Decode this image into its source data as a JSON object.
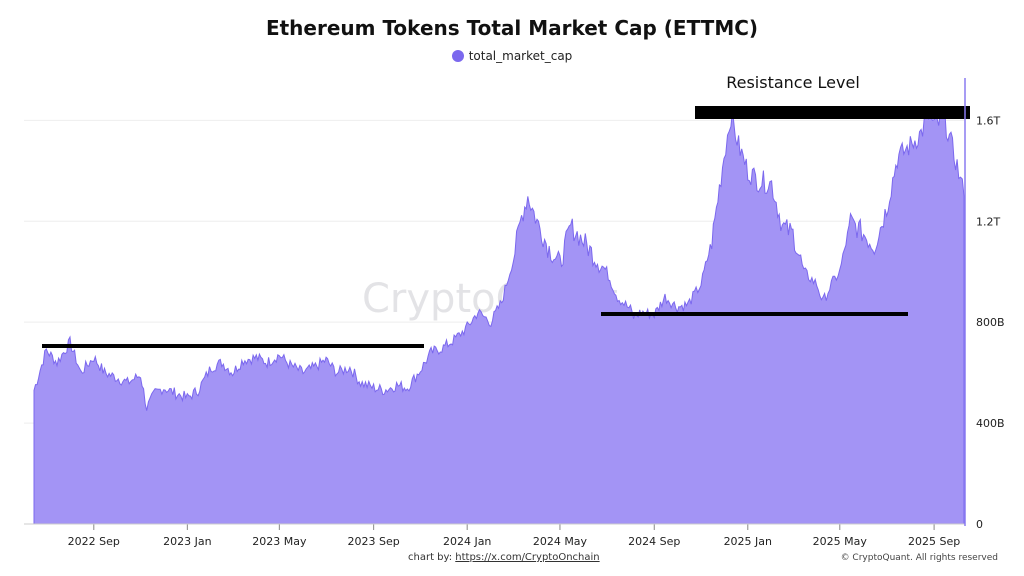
{
  "chart_data": {
    "type": "area",
    "title": "Ethereum Tokens Total Market Cap (ETTMC)",
    "legend": [
      "total_market_cap"
    ],
    "series": [
      {
        "name": "total_market_cap",
        "color": "#7b68ee",
        "x": [
          "2022-06-15",
          "2022-07-01",
          "2022-07-15",
          "2022-08-01",
          "2022-08-15",
          "2022-09-01",
          "2022-09-15",
          "2022-10-01",
          "2022-10-15",
          "2022-11-01",
          "2022-11-09",
          "2022-11-20",
          "2022-12-01",
          "2022-12-15",
          "2023-01-01",
          "2023-01-15",
          "2023-02-01",
          "2023-02-15",
          "2023-03-01",
          "2023-03-15",
          "2023-04-01",
          "2023-04-15",
          "2023-05-01",
          "2023-05-15",
          "2023-06-01",
          "2023-06-15",
          "2023-07-01",
          "2023-07-15",
          "2023-08-01",
          "2023-08-15",
          "2023-09-01",
          "2023-09-15",
          "2023-10-01",
          "2023-10-15",
          "2023-11-01",
          "2023-11-15",
          "2023-12-01",
          "2023-12-15",
          "2024-01-01",
          "2024-01-15",
          "2024-02-01",
          "2024-02-15",
          "2024-03-01",
          "2024-03-12",
          "2024-03-20",
          "2024-04-01",
          "2024-04-15",
          "2024-05-01",
          "2024-05-15",
          "2024-06-01",
          "2024-06-15",
          "2024-07-01",
          "2024-07-15",
          "2024-08-01",
          "2024-08-05",
          "2024-08-15",
          "2024-09-01",
          "2024-09-15",
          "2024-10-01",
          "2024-10-15",
          "2024-11-01",
          "2024-11-15",
          "2024-12-01",
          "2024-12-10",
          "2024-12-20",
          "2025-01-01",
          "2025-01-15",
          "2025-02-01",
          "2025-02-15",
          "2025-03-01",
          "2025-03-15",
          "2025-04-01",
          "2025-04-09",
          "2025-04-20",
          "2025-05-01",
          "2025-05-15",
          "2025-06-01",
          "2025-06-15",
          "2025-07-01",
          "2025-07-15",
          "2025-08-01",
          "2025-08-15",
          "2025-08-25",
          "2025-09-01",
          "2025-09-15",
          "2025-10-01",
          "2025-10-10"
        ],
        "values": [
          530,
          690,
          640,
          720,
          600,
          660,
          600,
          580,
          560,
          590,
          460,
          520,
          540,
          520,
          500,
          530,
          620,
          640,
          600,
          650,
          660,
          640,
          670,
          630,
          600,
          620,
          650,
          600,
          620,
          560,
          540,
          530,
          550,
          540,
          610,
          680,
          700,
          730,
          780,
          840,
          800,
          880,
          1050,
          1220,
          1300,
          1200,
          1100,
          1030,
          1180,
          1120,
          1060,
          1000,
          900,
          850,
          820,
          840,
          830,
          900,
          860,
          870,
          950,
          1120,
          1460,
          1620,
          1500,
          1400,
          1360,
          1350,
          1180,
          1150,
          1000,
          950,
          880,
          950,
          1000,
          1200,
          1150,
          1100,
          1250,
          1450,
          1500,
          1550,
          1620,
          1580,
          1600,
          1420,
          1300
        ]
      }
    ],
    "y_ticks": [
      "0",
      "400B",
      "800B",
      "1.2T",
      "1.6T"
    ],
    "x_ticks": [
      "2022 Sep",
      "2023 Jan",
      "2023 May",
      "2023 Sep",
      "2024 Jan",
      "2024 May",
      "2024 Sep",
      "2025 Jan",
      "2025 May",
      "2025 Sep"
    ],
    "annotations": {
      "resistance_label": "Resistance Level"
    },
    "watermark": "CryptoQuant"
  },
  "footer": {
    "credit_prefix": "chart by: ",
    "credit_link": "https://x.com/CryptoOnchain",
    "copyright": "© CryptoQuant. All rights reserved"
  },
  "colors": {
    "area_fill": "#a394f5",
    "area_line": "#7b68ee",
    "legend_dot": "#7b68ee"
  }
}
